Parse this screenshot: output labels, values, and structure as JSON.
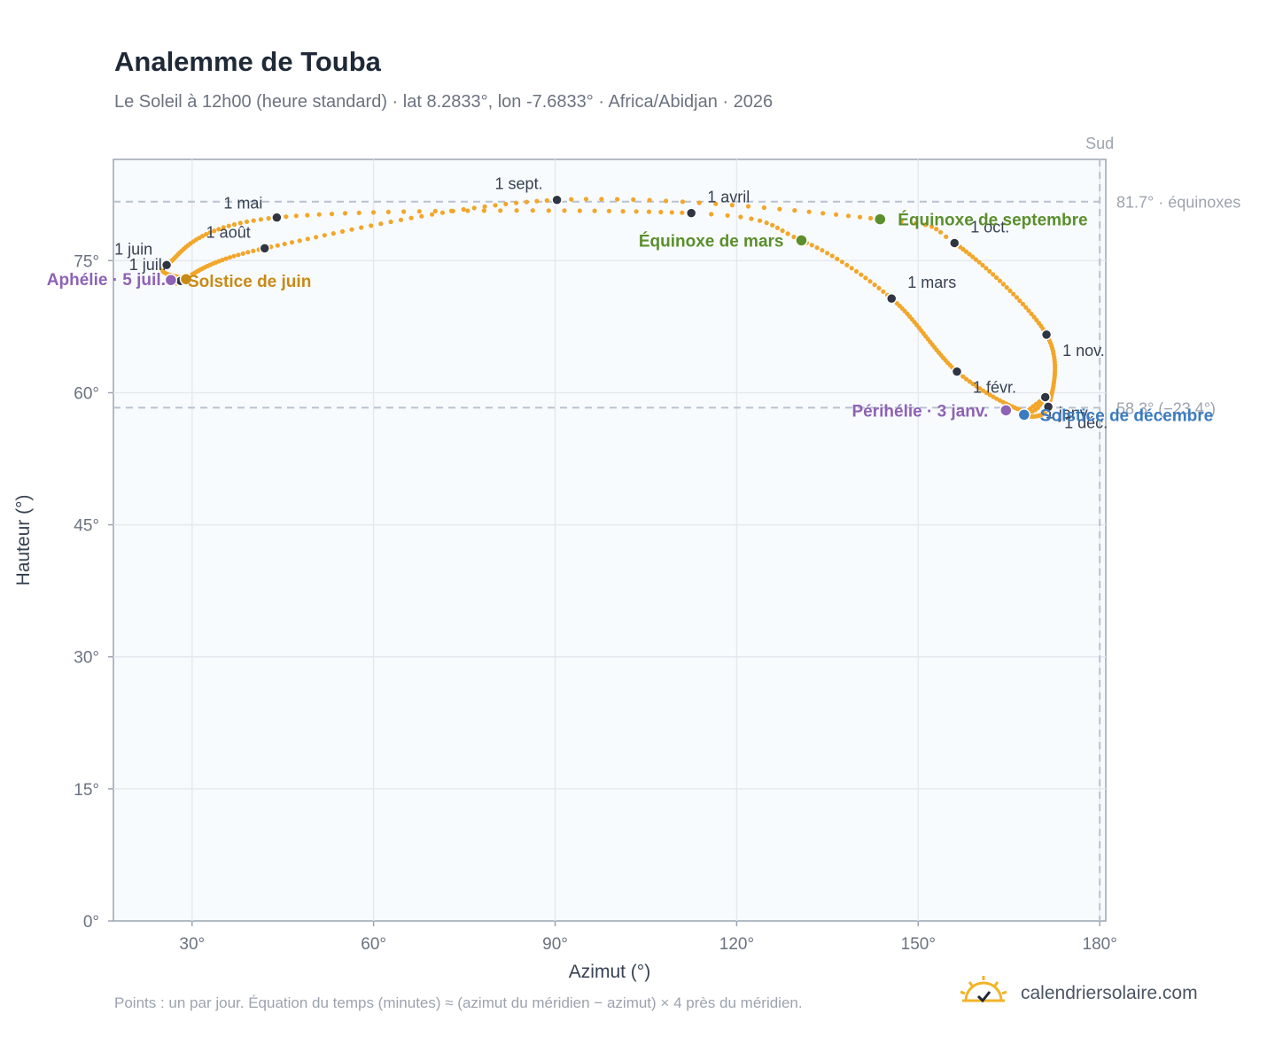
{
  "header": {
    "title": "Analemme de Touba",
    "subtitle": "Le Soleil à 12h00 (heure standard) · lat 8.2833°, lon -7.6833° · Africa/Abidjan · 2026"
  },
  "footer": {
    "note": "Points : un par jour. Équation du temps (minutes) ≈ (azimut du méridien − azimut) × 4 près du méridien.",
    "brand": "calendriersolaire.com",
    "brand_icon": "sun-check-icon"
  },
  "colors": {
    "curve": "#f2a62a",
    "month_marker": "#2f3542",
    "equinox": "#5a8f2c",
    "solstice_june": "#c88a14",
    "solstice_december": "#3b7bbf",
    "apsis": "#8e62b5",
    "plot_bg": "#f8fbfe",
    "grid": "#e5e9ef",
    "reference_line": "#b9c2cf"
  },
  "chart_data": {
    "type": "scatter",
    "xlabel": "Azimut (°)",
    "ylabel": "Hauteur (°)",
    "xlim": [
      17,
      181
    ],
    "ylim": [
      0,
      86.5
    ],
    "x_ticks": [
      {
        "value": 30,
        "label": "30°"
      },
      {
        "value": 60,
        "label": "60°"
      },
      {
        "value": 90,
        "label": "90°"
      },
      {
        "value": 120,
        "label": "120°"
      },
      {
        "value": 150,
        "label": "150°"
      },
      {
        "value": 180,
        "label": "180°"
      }
    ],
    "y_ticks": [
      {
        "value": 0,
        "label": "0°"
      },
      {
        "value": 15,
        "label": "15°"
      },
      {
        "value": 30,
        "label": "30°"
      },
      {
        "value": 45,
        "label": "45°"
      },
      {
        "value": 60,
        "label": "60°"
      },
      {
        "value": 75,
        "label": "75°"
      }
    ],
    "grid": true,
    "south_marker": {
      "azimuth": 180,
      "label": "Sud"
    },
    "reference_lines": [
      {
        "altitude": 81.7,
        "label": "81.7° · équinoxes"
      },
      {
        "altitude": 58.3,
        "label": "58.3° (−23.4°)"
      }
    ],
    "analemma_waypoints": [
      {
        "date": "01-01",
        "az": 171.0,
        "alt": 59.5
      },
      {
        "date": "01-10",
        "az": 167.5,
        "alt": 57.9
      },
      {
        "date": "02-01",
        "az": 156.4,
        "alt": 62.4
      },
      {
        "date": "03-01",
        "az": 145.6,
        "alt": 70.7
      },
      {
        "date": "03-20",
        "az": 130.7,
        "alt": 77.3
      },
      {
        "date": "04-01",
        "az": 112.5,
        "alt": 80.4
      },
      {
        "date": "05-01",
        "az": 44.0,
        "alt": 79.9
      },
      {
        "date": "06-01",
        "az": 25.8,
        "alt": 74.5
      },
      {
        "date": "06-21",
        "az": 29.0,
        "alt": 72.9
      },
      {
        "date": "07-01",
        "az": 28.1,
        "alt": 72.7
      },
      {
        "date": "08-01",
        "az": 42.0,
        "alt": 76.4
      },
      {
        "date": "09-01",
        "az": 90.3,
        "alt": 81.9
      },
      {
        "date": "09-23",
        "az": 143.7,
        "alt": 79.7
      },
      {
        "date": "10-01",
        "az": 156.0,
        "alt": 77.0
      },
      {
        "date": "11-01",
        "az": 171.2,
        "alt": 66.6
      },
      {
        "date": "12-01",
        "az": 171.5,
        "alt": 58.4
      },
      {
        "date": "12-21",
        "az": 167.5,
        "alt": 57.5
      },
      {
        "date": "12-31",
        "az": 171.0,
        "alt": 59.5
      }
    ],
    "month_markers": [
      {
        "label": "1 janv.",
        "az": 171.0,
        "alt": 59.5
      },
      {
        "label": "1 févr.",
        "az": 156.4,
        "alt": 62.4
      },
      {
        "label": "1 mars",
        "az": 145.6,
        "alt": 70.7
      },
      {
        "label": "1 avril",
        "az": 112.5,
        "alt": 80.4
      },
      {
        "label": "1 mai",
        "az": 44.0,
        "alt": 79.9
      },
      {
        "label": "1 juin",
        "az": 25.8,
        "alt": 74.5
      },
      {
        "label": "1 juil.",
        "az": 28.1,
        "alt": 72.7
      },
      {
        "label": "1 août",
        "az": 42.0,
        "alt": 76.4
      },
      {
        "label": "1 sept.",
        "az": 90.3,
        "alt": 81.9
      },
      {
        "label": "1 oct.",
        "az": 156.0,
        "alt": 77.0
      },
      {
        "label": "1 nov.",
        "az": 171.2,
        "alt": 66.6
      },
      {
        "label": "1 déc.",
        "az": 171.5,
        "alt": 58.4
      }
    ],
    "events": [
      {
        "label": "Équinoxe de mars",
        "az": 130.7,
        "alt": 77.3,
        "kind": "equinox"
      },
      {
        "label": "Équinoxe de septembre",
        "az": 143.7,
        "alt": 79.7,
        "kind": "equinox"
      },
      {
        "label": "Solstice de juin",
        "az": 29.0,
        "alt": 72.9,
        "kind": "solstice_june"
      },
      {
        "label": "Solstice de décembre",
        "az": 167.5,
        "alt": 57.5,
        "kind": "solstice_december"
      },
      {
        "label": "Aphélie · 5 juil.",
        "az": 26.5,
        "alt": 72.8,
        "kind": "apsis"
      },
      {
        "label": "Périhélie · 3 janv.",
        "az": 164.5,
        "alt": 58.0,
        "kind": "apsis"
      }
    ]
  }
}
